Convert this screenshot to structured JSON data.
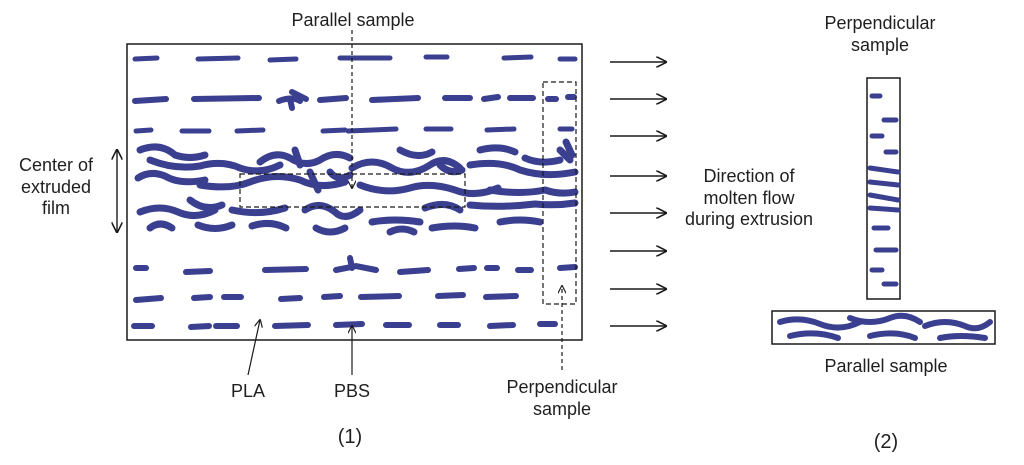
{
  "labels": {
    "parallel_sample_top": "Parallel sample",
    "center_line1": "Center of",
    "center_line2": "extruded",
    "center_line3": "film",
    "flow_line1": "Direction of",
    "flow_line2": "molten flow",
    "flow_line3": "during extrusion",
    "pla": "PLA",
    "pbs": "PBS",
    "perp_sample_line1": "Perpendicular",
    "perp_sample_line2": "sample",
    "panel1": "(1)",
    "perp_right_line1": "Perpendicular",
    "perp_right_line2": "sample",
    "parallel_right": "Parallel sample",
    "panel2": "(2)"
  },
  "colors": {
    "phase": "#3a3f8f",
    "background": "#ffffff",
    "line": "#1a1a1a"
  }
}
